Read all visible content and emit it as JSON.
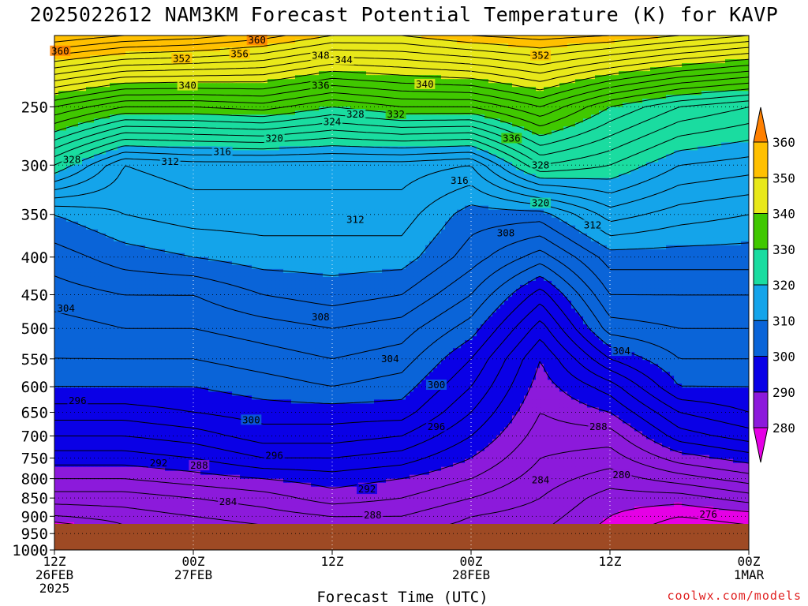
{
  "title": "2025022612 NAM3KM Forecast Potential Temperature (K) for KAVP",
  "xlabel": "Forecast Time (UTC)",
  "credit": "coolwx.com/models",
  "chart_data": {
    "type": "heatmap",
    "title": "2025022612 NAM3KM Forecast Potential Temperature (K) for KAVP",
    "xlabel": "Forecast Time (UTC)",
    "ylabel": "",
    "x": [
      0,
      6,
      12,
      18,
      24,
      30,
      36,
      42,
      48,
      54,
      60
    ],
    "x_ticks": [
      {
        "hour": 0,
        "lines": [
          "12Z",
          "26FEB",
          "2025"
        ]
      },
      {
        "hour": 12,
        "lines": [
          "00Z",
          "27FEB"
        ]
      },
      {
        "hour": 24,
        "lines": [
          "12Z"
        ]
      },
      {
        "hour": 36,
        "lines": [
          "00Z",
          "28FEB"
        ]
      },
      {
        "hour": 48,
        "lines": [
          "12Z"
        ]
      },
      {
        "hour": 60,
        "lines": [
          "00Z",
          "1MAR"
        ]
      }
    ],
    "xlim": [
      0,
      60
    ],
    "y_ticks": [
      250,
      300,
      350,
      400,
      450,
      500,
      550,
      600,
      650,
      700,
      750,
      800,
      850,
      900,
      950,
      1000
    ],
    "ylim": [
      200,
      1000
    ],
    "y_scale": "log",
    "y_inverted": true,
    "color_levels": [
      280,
      290,
      300,
      310,
      320,
      330,
      340,
      350,
      360
    ],
    "color_labels": [
      "280",
      "290",
      "300",
      "310",
      "320",
      "330",
      "340",
      "350",
      "360"
    ],
    "colors": [
      "#e500e5",
      "#8c1adb",
      "#0a00e6",
      "#0a64d8",
      "#14a4ea",
      "#1adca0",
      "#40c800",
      "#e8e81a",
      "#ffc000",
      "#ff8000"
    ],
    "ground_color": "#9e4a24",
    "field": [
      {
        "hour": 0,
        "levels": [
          {
            "p": 950,
            "theta": 276
          },
          {
            "p": 900,
            "theta": 282
          },
          {
            "p": 850,
            "theta": 285
          },
          {
            "p": 800,
            "theta": 288
          },
          {
            "p": 750,
            "theta": 291
          },
          {
            "p": 700,
            "theta": 294
          },
          {
            "p": 650,
            "theta": 297
          },
          {
            "p": 600,
            "theta": 300
          },
          {
            "p": 550,
            "theta": 302
          },
          {
            "p": 500,
            "theta": 303
          },
          {
            "p": 450,
            "theta": 305
          },
          {
            "p": 400,
            "theta": 307
          },
          {
            "p": 350,
            "theta": 310
          },
          {
            "p": 300,
            "theta": 322
          },
          {
            "p": 250,
            "theta": 336
          },
          {
            "p": 200,
            "theta": 358
          }
        ]
      },
      {
        "hour": 6,
        "levels": [
          {
            "p": 950,
            "theta": 281
          },
          {
            "p": 900,
            "theta": 283
          },
          {
            "p": 850,
            "theta": 285
          },
          {
            "p": 800,
            "theta": 288
          },
          {
            "p": 750,
            "theta": 291
          },
          {
            "p": 700,
            "theta": 294
          },
          {
            "p": 650,
            "theta": 297
          },
          {
            "p": 600,
            "theta": 300
          },
          {
            "p": 550,
            "theta": 302
          },
          {
            "p": 500,
            "theta": 304
          },
          {
            "p": 450,
            "theta": 306
          },
          {
            "p": 400,
            "theta": 309
          },
          {
            "p": 350,
            "theta": 312
          },
          {
            "p": 300,
            "theta": 314
          },
          {
            "p": 250,
            "theta": 332
          },
          {
            "p": 200,
            "theta": 356
          }
        ]
      },
      {
        "hour": 12,
        "levels": [
          {
            "p": 950,
            "theta": 282
          },
          {
            "p": 900,
            "theta": 284
          },
          {
            "p": 850,
            "theta": 286
          },
          {
            "p": 800,
            "theta": 289
          },
          {
            "p": 750,
            "theta": 292
          },
          {
            "p": 700,
            "theta": 295
          },
          {
            "p": 650,
            "theta": 298
          },
          {
            "p": 600,
            "theta": 300
          },
          {
            "p": 550,
            "theta": 302
          },
          {
            "p": 500,
            "theta": 304
          },
          {
            "p": 450,
            "theta": 306
          },
          {
            "p": 400,
            "theta": 310
          },
          {
            "p": 350,
            "theta": 313
          },
          {
            "p": 300,
            "theta": 315
          },
          {
            "p": 250,
            "theta": 332
          },
          {
            "p": 200,
            "theta": 355
          }
        ]
      },
      {
        "hour": 18,
        "levels": [
          {
            "p": 950,
            "theta": 283
          },
          {
            "p": 900,
            "theta": 285
          },
          {
            "p": 850,
            "theta": 287
          },
          {
            "p": 800,
            "theta": 290
          },
          {
            "p": 750,
            "theta": 294
          },
          {
            "p": 700,
            "theta": 297
          },
          {
            "p": 650,
            "theta": 299
          },
          {
            "p": 600,
            "theta": 301
          },
          {
            "p": 550,
            "theta": 303
          },
          {
            "p": 500,
            "theta": 305
          },
          {
            "p": 450,
            "theta": 308
          },
          {
            "p": 400,
            "theta": 311
          },
          {
            "p": 350,
            "theta": 313
          },
          {
            "p": 300,
            "theta": 315
          },
          {
            "p": 250,
            "theta": 333
          },
          {
            "p": 200,
            "theta": 353
          }
        ]
      },
      {
        "hour": 24,
        "levels": [
          {
            "p": 950,
            "theta": 284
          },
          {
            "p": 900,
            "theta": 286
          },
          {
            "p": 850,
            "theta": 289
          },
          {
            "p": 800,
            "theta": 291
          },
          {
            "p": 750,
            "theta": 294
          },
          {
            "p": 700,
            "theta": 297
          },
          {
            "p": 650,
            "theta": 299
          },
          {
            "p": 600,
            "theta": 302
          },
          {
            "p": 550,
            "theta": 304
          },
          {
            "p": 500,
            "theta": 306
          },
          {
            "p": 450,
            "theta": 309
          },
          {
            "p": 400,
            "theta": 311
          },
          {
            "p": 350,
            "theta": 313
          },
          {
            "p": 300,
            "theta": 315
          },
          {
            "p": 250,
            "theta": 330
          },
          {
            "p": 200,
            "theta": 350
          }
        ]
      },
      {
        "hour": 30,
        "levels": [
          {
            "p": 950,
            "theta": 284
          },
          {
            "p": 900,
            "theta": 286
          },
          {
            "p": 850,
            "theta": 288
          },
          {
            "p": 800,
            "theta": 290
          },
          {
            "p": 750,
            "theta": 293
          },
          {
            "p": 700,
            "theta": 296
          },
          {
            "p": 650,
            "theta": 299
          },
          {
            "p": 600,
            "theta": 301
          },
          {
            "p": 550,
            "theta": 303
          },
          {
            "p": 500,
            "theta": 305
          },
          {
            "p": 450,
            "theta": 308
          },
          {
            "p": 400,
            "theta": 311
          },
          {
            "p": 350,
            "theta": 313
          },
          {
            "p": 300,
            "theta": 315
          },
          {
            "p": 250,
            "theta": 332
          },
          {
            "p": 200,
            "theta": 350
          }
        ]
      },
      {
        "hour": 36,
        "levels": [
          {
            "p": 950,
            "theta": 283
          },
          {
            "p": 900,
            "theta": 284
          },
          {
            "p": 850,
            "theta": 286
          },
          {
            "p": 800,
            "theta": 288
          },
          {
            "p": 750,
            "theta": 290
          },
          {
            "p": 700,
            "theta": 292
          },
          {
            "p": 650,
            "theta": 294
          },
          {
            "p": 600,
            "theta": 296
          },
          {
            "p": 550,
            "theta": 298
          },
          {
            "p": 500,
            "theta": 301
          },
          {
            "p": 450,
            "theta": 304
          },
          {
            "p": 400,
            "theta": 307
          },
          {
            "p": 350,
            "theta": 309
          },
          {
            "p": 300,
            "theta": 314
          },
          {
            "p": 250,
            "theta": 332
          },
          {
            "p": 200,
            "theta": 352
          }
        ]
      },
      {
        "hour": 42,
        "levels": [
          {
            "p": 950,
            "theta": 282
          },
          {
            "p": 900,
            "theta": 283
          },
          {
            "p": 850,
            "theta": 284
          },
          {
            "p": 800,
            "theta": 285
          },
          {
            "p": 750,
            "theta": 286
          },
          {
            "p": 700,
            "theta": 287
          },
          {
            "p": 650,
            "theta": 288
          },
          {
            "p": 600,
            "theta": 289
          },
          {
            "p": 550,
            "theta": 290
          },
          {
            "p": 500,
            "theta": 293
          },
          {
            "p": 450,
            "theta": 297
          },
          {
            "p": 400,
            "theta": 303
          },
          {
            "p": 350,
            "theta": 309
          },
          {
            "p": 300,
            "theta": 324
          },
          {
            "p": 250,
            "theta": 336
          },
          {
            "p": 200,
            "theta": 353
          }
        ]
      },
      {
        "hour": 48,
        "levels": [
          {
            "p": 950,
            "theta": 279
          },
          {
            "p": 900,
            "theta": 280
          },
          {
            "p": 850,
            "theta": 281
          },
          {
            "p": 800,
            "theta": 283
          },
          {
            "p": 750,
            "theta": 285
          },
          {
            "p": 700,
            "theta": 287
          },
          {
            "p": 650,
            "theta": 290
          },
          {
            "p": 600,
            "theta": 293
          },
          {
            "p": 550,
            "theta": 298
          },
          {
            "p": 500,
            "theta": 303
          },
          {
            "p": 450,
            "theta": 306
          },
          {
            "p": 400,
            "theta": 309
          },
          {
            "p": 350,
            "theta": 315
          },
          {
            "p": 300,
            "theta": 322
          },
          {
            "p": 250,
            "theta": 330
          },
          {
            "p": 200,
            "theta": 352
          }
        ]
      },
      {
        "hour": 54,
        "levels": [
          {
            "p": 950,
            "theta": 276
          },
          {
            "p": 900,
            "theta": 278
          },
          {
            "p": 850,
            "theta": 281
          },
          {
            "p": 800,
            "theta": 285
          },
          {
            "p": 750,
            "theta": 289
          },
          {
            "p": 700,
            "theta": 293
          },
          {
            "p": 650,
            "theta": 296
          },
          {
            "p": 600,
            "theta": 300
          },
          {
            "p": 550,
            "theta": 302
          },
          {
            "p": 500,
            "theta": 304
          },
          {
            "p": 450,
            "theta": 306
          },
          {
            "p": 400,
            "theta": 309
          },
          {
            "p": 350,
            "theta": 313
          },
          {
            "p": 300,
            "theta": 318
          },
          {
            "p": 250,
            "theta": 326
          },
          {
            "p": 200,
            "theta": 350
          }
        ]
      },
      {
        "hour": 60,
        "levels": [
          {
            "p": 950,
            "theta": 277
          },
          {
            "p": 900,
            "theta": 279
          },
          {
            "p": 850,
            "theta": 283
          },
          {
            "p": 800,
            "theta": 287
          },
          {
            "p": 750,
            "theta": 291
          },
          {
            "p": 700,
            "theta": 295
          },
          {
            "p": 650,
            "theta": 298
          },
          {
            "p": 600,
            "theta": 300
          },
          {
            "p": 550,
            "theta": 302
          },
          {
            "p": 500,
            "theta": 304
          },
          {
            "p": 450,
            "theta": 306
          },
          {
            "p": 400,
            "theta": 309
          },
          {
            "p": 350,
            "theta": 312
          },
          {
            "p": 300,
            "theta": 317
          },
          {
            "p": 250,
            "theta": 324
          },
          {
            "p": 200,
            "theta": 348
          }
        ]
      }
    ],
    "contour_labels": [
      {
        "text": "360",
        "hour": 0.5,
        "p": 210
      },
      {
        "text": "360",
        "hour": 17.5,
        "p": 203
      },
      {
        "text": "352",
        "hour": 11,
        "p": 215
      },
      {
        "text": "356",
        "hour": 16,
        "p": 212
      },
      {
        "text": "348",
        "hour": 23,
        "p": 213
      },
      {
        "text": "344",
        "hour": 25,
        "p": 216
      },
      {
        "text": "352",
        "hour": 42,
        "p": 213
      },
      {
        "text": "340",
        "hour": 11.5,
        "p": 234
      },
      {
        "text": "336",
        "hour": 23,
        "p": 234
      },
      {
        "text": "340",
        "hour": 32,
        "p": 233
      },
      {
        "text": "328",
        "hour": 26,
        "p": 256
      },
      {
        "text": "332",
        "hour": 29.5,
        "p": 256
      },
      {
        "text": "324",
        "hour": 24,
        "p": 262
      },
      {
        "text": "320",
        "hour": 19,
        "p": 276
      },
      {
        "text": "336",
        "hour": 39.5,
        "p": 276
      },
      {
        "text": "316",
        "hour": 14.5,
        "p": 288
      },
      {
        "text": "328",
        "hour": 1.5,
        "p": 295
      },
      {
        "text": "312",
        "hour": 10,
        "p": 297
      },
      {
        "text": "328",
        "hour": 42,
        "p": 300
      },
      {
        "text": "316",
        "hour": 35,
        "p": 315
      },
      {
        "text": "320",
        "hour": 42,
        "p": 338
      },
      {
        "text": "312",
        "hour": 26,
        "p": 356
      },
      {
        "text": "312",
        "hour": 46.5,
        "p": 362
      },
      {
        "text": "308",
        "hour": 39,
        "p": 371
      },
      {
        "text": "304",
        "hour": 1,
        "p": 470
      },
      {
        "text": "308",
        "hour": 23,
        "p": 483
      },
      {
        "text": "304",
        "hour": 29,
        "p": 550
      },
      {
        "text": "304",
        "hour": 49,
        "p": 537
      },
      {
        "text": "300",
        "hour": 33,
        "p": 597
      },
      {
        "text": "296",
        "hour": 2,
        "p": 627
      },
      {
        "text": "300",
        "hour": 17,
        "p": 666
      },
      {
        "text": "296",
        "hour": 33,
        "p": 680
      },
      {
        "text": "288",
        "hour": 47,
        "p": 680
      },
      {
        "text": "296",
        "hour": 19,
        "p": 745
      },
      {
        "text": "292",
        "hour": 9,
        "p": 762
      },
      {
        "text": "288",
        "hour": 12.5,
        "p": 768
      },
      {
        "text": "280",
        "hour": 49,
        "p": 791
      },
      {
        "text": "284",
        "hour": 42,
        "p": 804
      },
      {
        "text": "292",
        "hour": 27,
        "p": 827
      },
      {
        "text": "284",
        "hour": 15,
        "p": 860
      },
      {
        "text": "288",
        "hour": 27.5,
        "p": 897
      },
      {
        "text": "276",
        "hour": 56.5,
        "p": 895
      }
    ]
  }
}
